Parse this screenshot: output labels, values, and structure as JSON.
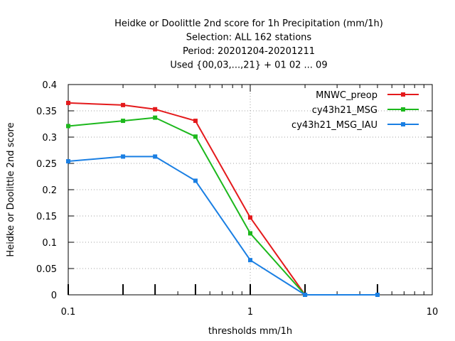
{
  "chart_data": {
    "type": "line",
    "title_lines": [
      "Heidke or Doolittle 2nd score  for 1h Precipitation (mm/1h)",
      "Selection: ALL    162 stations",
      "Period: 20201204-20201211",
      "Used {00,03,...,21} + 01 02 ... 09"
    ],
    "xlabel": "thresholds mm/1h",
    "ylabel": "Heidke or Doolittle 2nd score",
    "xscale": "log",
    "xlim": [
      0.1,
      10
    ],
    "ylim": [
      0,
      0.4
    ],
    "xticks": [
      {
        "value": 0.1,
        "label": "0.1"
      },
      {
        "value": 1,
        "label": "1"
      },
      {
        "value": 10,
        "label": "10"
      }
    ],
    "yticks": [
      {
        "value": 0,
        "label": "0"
      },
      {
        "value": 0.05,
        "label": "0.05"
      },
      {
        "value": 0.1,
        "label": "0.1"
      },
      {
        "value": 0.15,
        "label": "0.15"
      },
      {
        "value": 0.2,
        "label": "0.2"
      },
      {
        "value": 0.25,
        "label": "0.25"
      },
      {
        "value": 0.3,
        "label": "0.3"
      },
      {
        "value": 0.35,
        "label": "0.35"
      },
      {
        "value": 0.4,
        "label": "0.4"
      }
    ],
    "grid": true,
    "legend_position": "top-right",
    "data_markers_x": [
      0.1,
      0.2,
      0.3,
      0.5,
      1,
      2,
      5
    ],
    "series": [
      {
        "name": "MNWC_preop",
        "color": "#e41a1c",
        "x": [
          0.1,
          0.2,
          0.3,
          0.5,
          1,
          2
        ],
        "y": [
          0.365,
          0.361,
          0.353,
          0.331,
          0.147,
          0.0
        ]
      },
      {
        "name": "cy43h21_MSG",
        "color": "#1cb81c",
        "x": [
          0.1,
          0.2,
          0.3,
          0.5,
          1,
          2
        ],
        "y": [
          0.321,
          0.331,
          0.337,
          0.301,
          0.117,
          0.0
        ]
      },
      {
        "name": "cy43h21_MSG_IAU",
        "color": "#1a7fe3",
        "x": [
          0.1,
          0.2,
          0.3,
          0.5,
          1,
          2,
          5
        ],
        "y": [
          0.254,
          0.263,
          0.263,
          0.217,
          0.066,
          0.0,
          0.0
        ]
      }
    ]
  }
}
